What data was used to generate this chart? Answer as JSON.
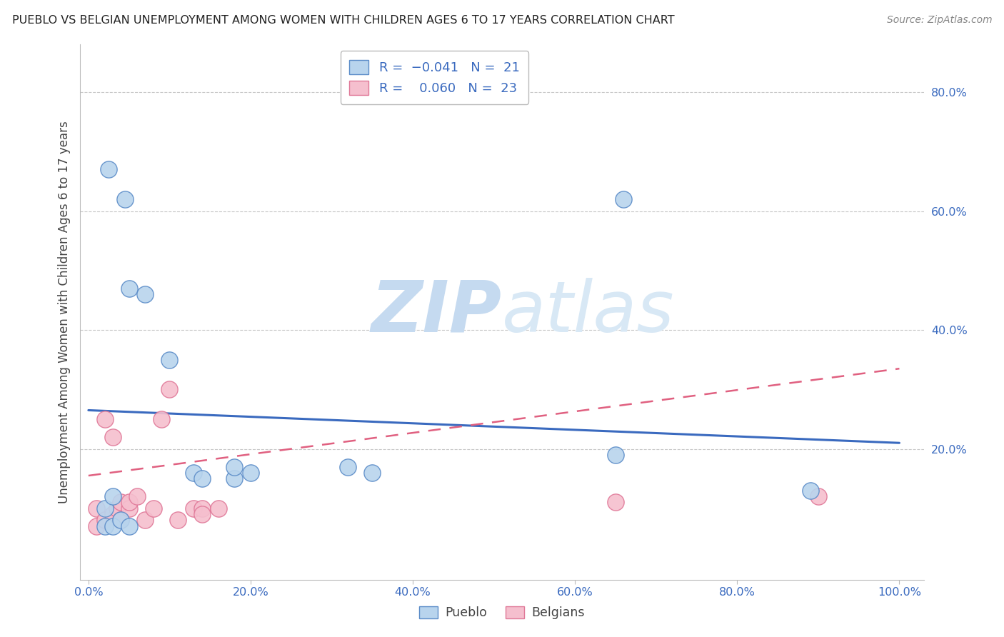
{
  "title": "PUEBLO VS BELGIAN UNEMPLOYMENT AMONG WOMEN WITH CHILDREN AGES 6 TO 17 YEARS CORRELATION CHART",
  "source": "Source: ZipAtlas.com",
  "ylabel": "Unemployment Among Women with Children Ages 6 to 17 years",
  "xlim": [
    -0.01,
    1.03
  ],
  "ylim": [
    -0.02,
    0.88
  ],
  "xtick_vals": [
    0.0,
    0.2,
    0.4,
    0.6,
    0.8,
    1.0
  ],
  "xticklabels": [
    "0.0%",
    "20.0%",
    "40.0%",
    "60.0%",
    "80.0%",
    "100.0%"
  ],
  "ytick_vals": [
    0.2,
    0.4,
    0.6,
    0.8
  ],
  "yticklabels": [
    "20.0%",
    "40.0%",
    "60.0%",
    "80.0%"
  ],
  "pueblo_face": "#b8d4ed",
  "pueblo_edge": "#5b8cc8",
  "belgians_face": "#f5bfce",
  "belgians_edge": "#e07898",
  "pueblo_line": "#3a6abf",
  "belgians_line": "#e06080",
  "legend_text_color": "#3a6abf",
  "axis_tick_color": "#3a6abf",
  "bg_color": "#ffffff",
  "grid_color": "#c8c8c8",
  "watermark_zip_color": "#c5daf0",
  "watermark_atlas_color": "#d8e8f5",
  "pueblo_x": [
    0.02,
    0.02,
    0.025,
    0.03,
    0.03,
    0.04,
    0.045,
    0.05,
    0.05,
    0.07,
    0.1,
    0.13,
    0.14,
    0.18,
    0.18,
    0.2,
    0.32,
    0.35,
    0.65,
    0.66,
    0.89
  ],
  "pueblo_y": [
    0.07,
    0.1,
    0.67,
    0.07,
    0.12,
    0.08,
    0.62,
    0.07,
    0.47,
    0.46,
    0.35,
    0.16,
    0.15,
    0.15,
    0.17,
    0.16,
    0.17,
    0.16,
    0.19,
    0.62,
    0.13
  ],
  "belgians_x": [
    0.01,
    0.01,
    0.02,
    0.02,
    0.03,
    0.03,
    0.035,
    0.04,
    0.04,
    0.05,
    0.05,
    0.06,
    0.07,
    0.08,
    0.09,
    0.1,
    0.11,
    0.13,
    0.14,
    0.14,
    0.16,
    0.65,
    0.9
  ],
  "belgians_y": [
    0.07,
    0.1,
    0.08,
    0.25,
    0.22,
    0.09,
    0.1,
    0.11,
    0.08,
    0.1,
    0.11,
    0.12,
    0.08,
    0.1,
    0.25,
    0.3,
    0.08,
    0.1,
    0.1,
    0.09,
    0.1,
    0.11,
    0.12
  ],
  "pueblo_trend_x": [
    0.0,
    1.0
  ],
  "pueblo_trend_y": [
    0.265,
    0.21
  ],
  "belgians_trend_x": [
    0.0,
    1.0
  ],
  "belgians_trend_y": [
    0.155,
    0.335
  ]
}
